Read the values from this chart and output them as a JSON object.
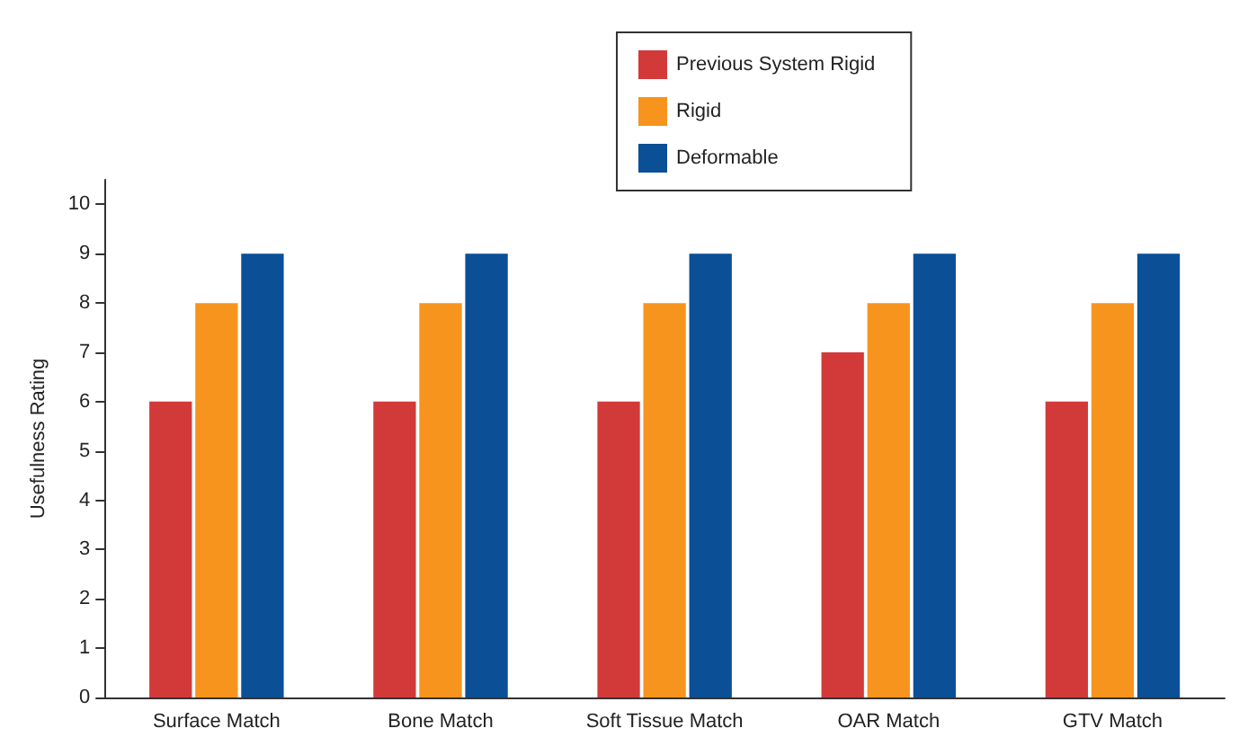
{
  "chart_data": {
    "type": "bar",
    "ylabel": "Usefulness Rating",
    "categories": [
      "Surface Match",
      "Bone Match",
      "Soft Tissue Match",
      "OAR Match",
      "GTV Match"
    ],
    "series": [
      {
        "name": "Previous System Rigid",
        "color": "#d23a3a",
        "values": [
          6,
          6,
          6,
          7,
          6
        ]
      },
      {
        "name": "Rigid",
        "color": "#f7941d",
        "values": [
          8,
          8,
          8,
          8,
          8
        ]
      },
      {
        "name": "Deformable",
        "color": "#0b4f97",
        "values": [
          9,
          9,
          9,
          9,
          9
        ]
      }
    ],
    "ylim": [
      0,
      10.5
    ],
    "yticks": [
      0,
      1,
      2,
      3,
      4,
      5,
      6,
      7,
      8,
      9,
      10
    ],
    "grid": false,
    "legend": "top"
  }
}
